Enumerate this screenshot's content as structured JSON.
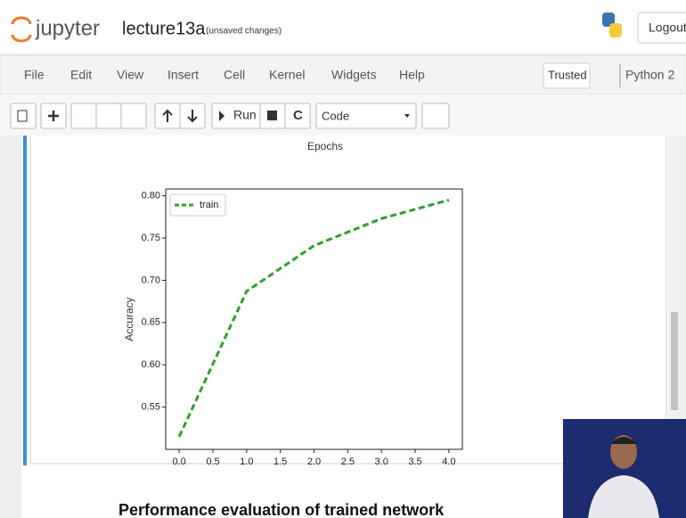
{
  "header": {
    "logo": "jupyter",
    "notebook": "lecture13a",
    "status": "(unsaved changes)",
    "logout": "Logout"
  },
  "menu": {
    "items": [
      "File",
      "Edit",
      "View",
      "Insert",
      "Cell",
      "Kernel",
      "Widgets",
      "Help"
    ],
    "trusted": "Trusted",
    "kernel": "Python 2"
  },
  "toolbar": {
    "run": "Run",
    "cell_type": "Code"
  },
  "output": {
    "previous_xlabel": "Epochs",
    "heading": "Performance evaluation of trained network"
  },
  "chart_data": {
    "type": "line",
    "ylabel": "Accuracy",
    "x": [
      0,
      1,
      2,
      3,
      4
    ],
    "series": [
      {
        "name": "train",
        "color": "#2ca02c",
        "values": [
          0.515,
          0.687,
          0.741,
          0.773,
          0.795
        ]
      }
    ],
    "xlim": [
      -0.2,
      4.2
    ],
    "xticks": [
      {
        "value": 0,
        "label": "0.0"
      },
      {
        "value": 0.5,
        "label": "0.5"
      },
      {
        "value": 1,
        "label": "1.0"
      },
      {
        "value": 1.5,
        "label": "1.5"
      },
      {
        "value": 2,
        "label": "2.0"
      },
      {
        "value": 2.5,
        "label": "2.5"
      },
      {
        "value": 3,
        "label": "3.0"
      },
      {
        "value": 3.5,
        "label": "3.5"
      },
      {
        "value": 4,
        "label": "4.0"
      }
    ],
    "ylim": [
      0.5,
      0.808
    ],
    "yticks": [
      0.55,
      {
        "value": 0.6,
        "label": "0.60"
      },
      0.65,
      {
        "value": 0.7,
        "label": "0.70"
      },
      0.75,
      {
        "value": 0.8,
        "label": "0.80"
      }
    ],
    "legend": "upper left",
    "grid": false
  }
}
